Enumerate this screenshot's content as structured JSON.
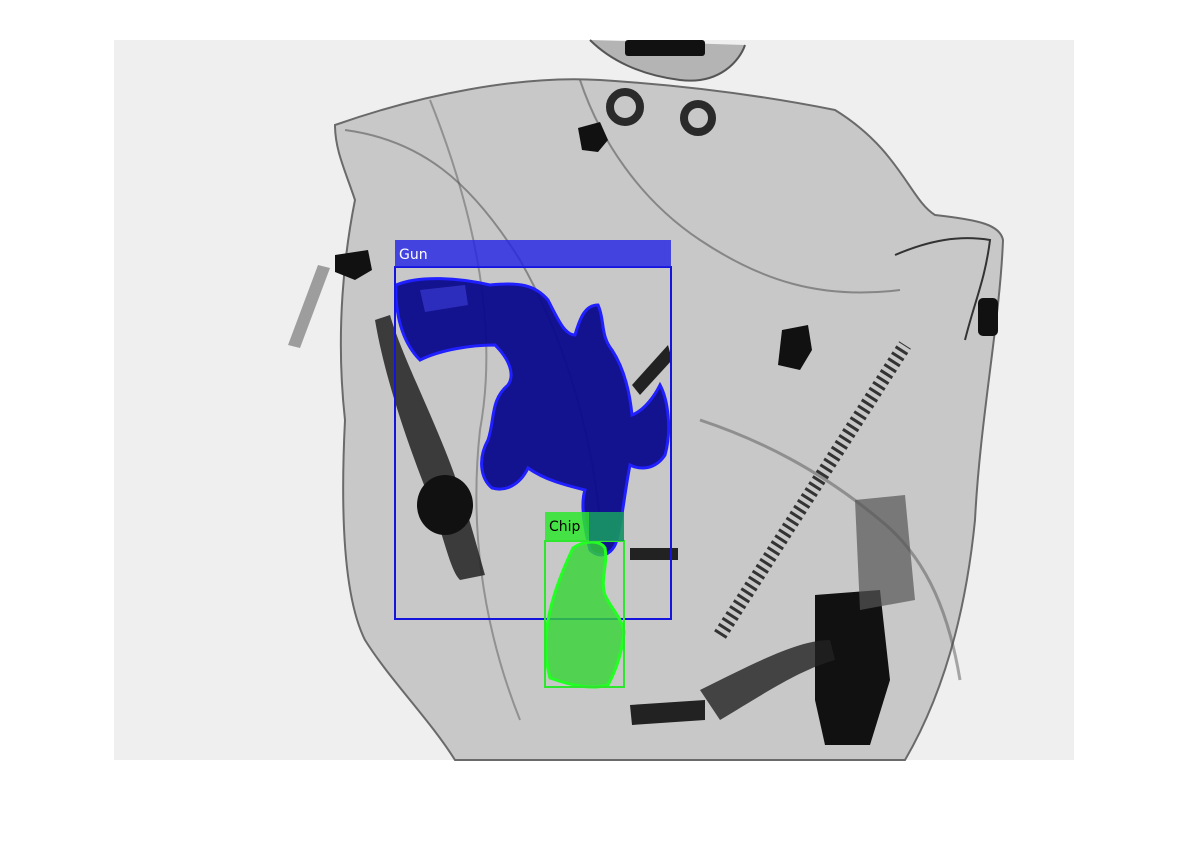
{
  "image": {
    "description_kind": "x-ray baggage scan with detection overlays",
    "background_color": "#efefef"
  },
  "detections": [
    {
      "label": "Gun",
      "color": "#1414dc",
      "fill": "#0a0ab4"
    },
    {
      "label": "Chip",
      "color": "#2ee62e",
      "fill": "#33d633"
    }
  ]
}
